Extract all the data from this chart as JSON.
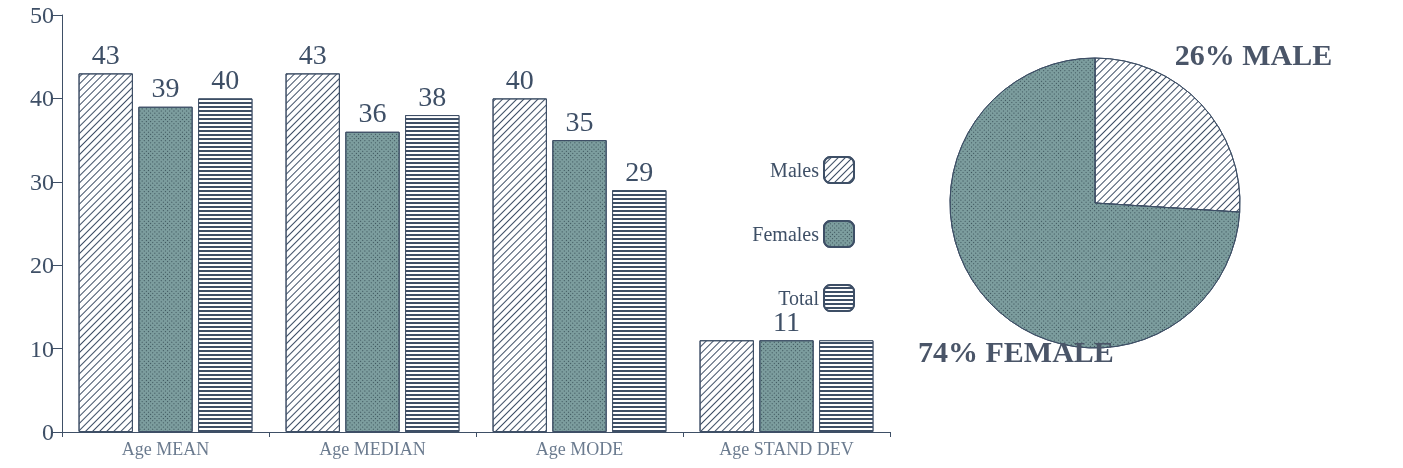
{
  "chart_data": [
    {
      "type": "bar",
      "categories": [
        "Age MEAN",
        "Age MEDIAN",
        "Age MODE",
        "Age STAND DEV"
      ],
      "series": [
        {
          "name": "Males",
          "color": "#ffffff",
          "values": [
            43,
            43,
            40,
            11
          ],
          "value_labels": [
            "43",
            "43",
            "40",
            null
          ]
        },
        {
          "name": "Females",
          "color": "#7c9d9e",
          "values": [
            39,
            36,
            35,
            11
          ],
          "value_labels": [
            "39",
            "36",
            "35",
            "11"
          ]
        },
        {
          "name": "Total",
          "color": "#3e4f66",
          "values": [
            40,
            38,
            29,
            11
          ],
          "value_labels": [
            "40",
            "38",
            "29",
            null
          ]
        }
      ],
      "ylim": [
        0,
        50
      ],
      "yticks": [
        0,
        10,
        20,
        30,
        40,
        50
      ],
      "grid": false,
      "legend": "right"
    },
    {
      "type": "pie",
      "categories": [
        "26% MALE",
        "74% FEMALE"
      ],
      "values": [
        26,
        74
      ],
      "colors": [
        "#ffffff",
        "#7c9d9e"
      ]
    }
  ]
}
